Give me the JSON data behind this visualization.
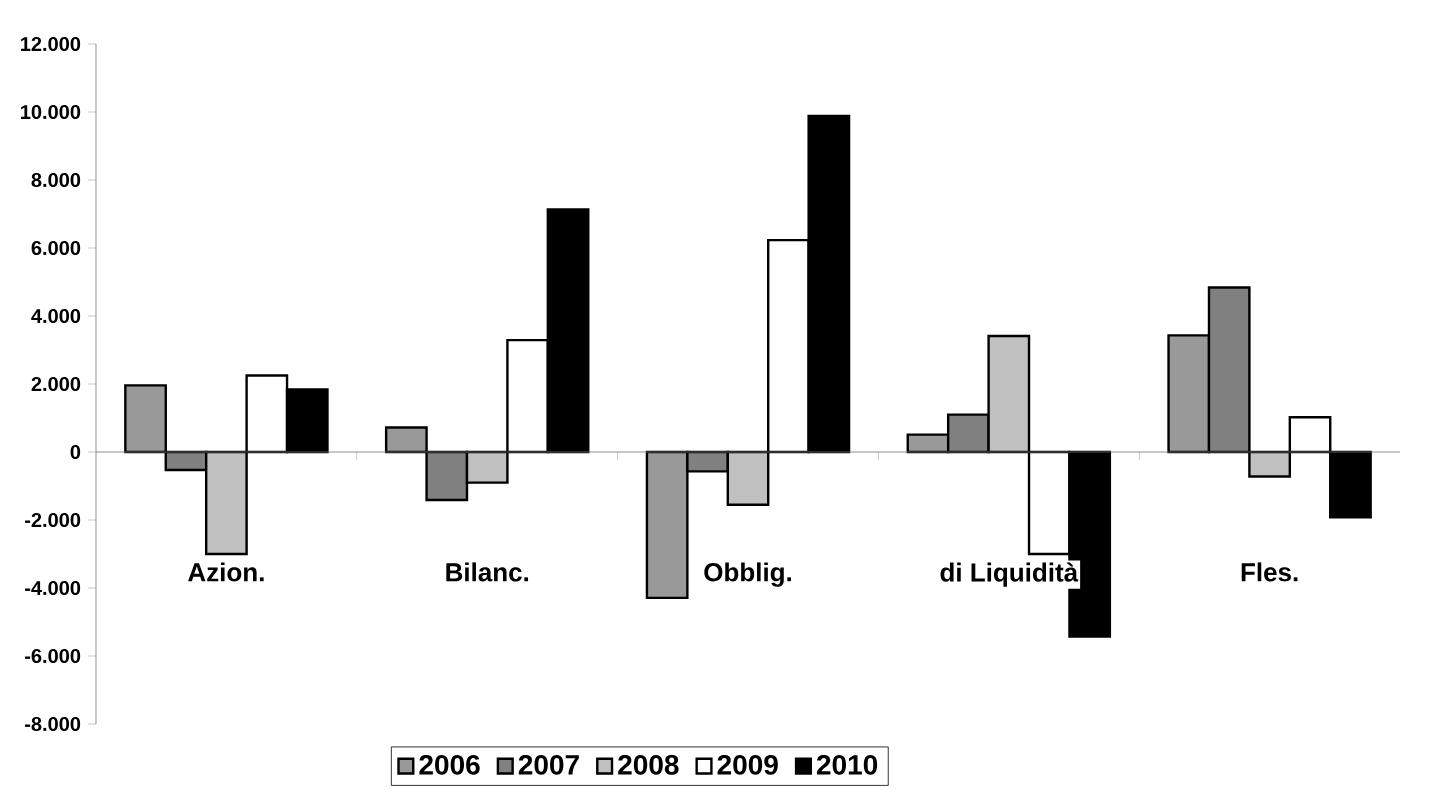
{
  "chart_data": {
    "type": "bar",
    "categories": [
      "Azion.",
      "Bilanc.",
      "Obblig.",
      "di Liquidità",
      "Fles."
    ],
    "series": [
      {
        "name": "2006",
        "color": "#999999",
        "values": [
          1960,
          720,
          -4290,
          510,
          3430
        ]
      },
      {
        "name": "2007",
        "color": "#808080",
        "values": [
          -530,
          -1410,
          -570,
          1100,
          4840
        ]
      },
      {
        "name": "2008",
        "color": "#c0c0c0",
        "values": [
          -3000,
          -900,
          -1550,
          3410,
          -720
        ]
      },
      {
        "name": "2009",
        "color": "#ffffff",
        "values": [
          2250,
          3290,
          6230,
          -3000,
          1020
        ]
      },
      {
        "name": "2010",
        "color": "#000000",
        "values": [
          1840,
          7130,
          9880,
          -5430,
          -1920
        ]
      }
    ],
    "ylim": [
      -8000,
      12000
    ],
    "yticks": [
      {
        "value": -8000,
        "label": "-8.000"
      },
      {
        "value": -6000,
        "label": "-6.000"
      },
      {
        "value": -4000,
        "label": "-4.000"
      },
      {
        "value": -2000,
        "label": "-2.000"
      },
      {
        "value": 0,
        "label": "0"
      },
      {
        "value": 2000,
        "label": "2.000"
      },
      {
        "value": 4000,
        "label": "4.000"
      },
      {
        "value": 6000,
        "label": "6.000"
      },
      {
        "value": 8000,
        "label": "8.000"
      },
      {
        "value": 10000,
        "label": "10.000"
      },
      {
        "value": 12000,
        "label": "12.000"
      }
    ],
    "legend": "bottom"
  }
}
